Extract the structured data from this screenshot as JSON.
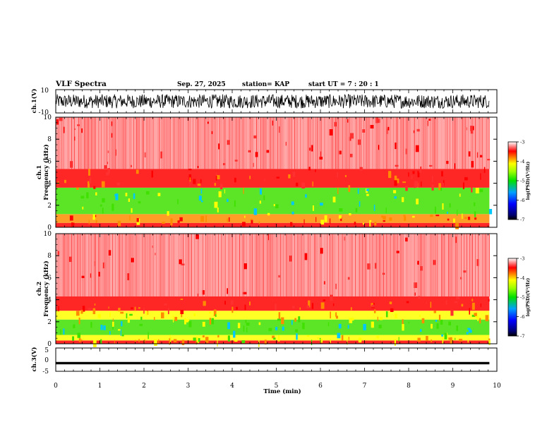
{
  "header": {
    "title": "VLF Spectra",
    "date": "Sep. 27, 2025",
    "station": "station= KAP",
    "start_ut": "start  UT =   7 : 20 : 1"
  },
  "colors": {
    "band_low": "#0000ff",
    "band_mid": "#00e000",
    "band_high": "#ffff00",
    "band_top": "#ff0000",
    "background": "#ffffff",
    "trace": "#000000"
  },
  "chart_data": [
    {
      "type": "line",
      "id": "ch1_waveform",
      "ylabel": "ch.1(V)",
      "ylim": [
        -10,
        10
      ],
      "ytick_labels": [
        "10",
        "-10"
      ],
      "xlim": [
        0,
        10
      ],
      "data_extent_min": 9.83,
      "description_values": {
        "mean": 0,
        "amplitude": 6
      }
    },
    {
      "type": "heatmap",
      "id": "ch1_spectrogram",
      "ylabel": "ch.1\nFrequency (kHz)",
      "ylim": [
        0,
        10
      ],
      "ytick_labels": [
        "10",
        "8",
        "6",
        "4",
        "2",
        "0"
      ],
      "xlim": [
        0,
        10
      ],
      "data_extent_min": 9.83,
      "colorbar": {
        "title": "log(PSD)(V²/Hz)",
        "range": [
          -7,
          -3
        ],
        "tick_labels": [
          "-3",
          "-4",
          "-5",
          "-6",
          "-7"
        ]
      },
      "bands": [
        {
          "f_low": 0.0,
          "f_high": 0.4,
          "level": -3.5
        },
        {
          "f_low": 0.4,
          "f_high": 1.2,
          "level": -3.8
        },
        {
          "f_low": 1.2,
          "f_high": 3.6,
          "level": -4.8
        },
        {
          "f_low": 3.6,
          "f_high": 5.3,
          "level": -3.6
        },
        {
          "f_low": 5.3,
          "f_high": 10.0,
          "level": -3.1
        }
      ]
    },
    {
      "type": "heatmap",
      "id": "ch2_spectrogram",
      "ylabel": "ch.2\nFrequency (kHz)",
      "ylim": [
        0,
        10
      ],
      "ytick_labels": [
        "10",
        "8",
        "6",
        "4",
        "2",
        "0"
      ],
      "xlim": [
        0,
        10
      ],
      "data_extent_min": 9.83,
      "colorbar": {
        "title": "log(PSD)(V²/Hz)",
        "range": [
          -7,
          -3
        ],
        "tick_labels": [
          "-3",
          "-4",
          "-5",
          "-6",
          "-7"
        ]
      },
      "bands": [
        {
          "f_low": 0.0,
          "f_high": 0.3,
          "level": -3.5
        },
        {
          "f_low": 0.3,
          "f_high": 0.8,
          "level": -4.3
        },
        {
          "f_low": 0.8,
          "f_high": 2.2,
          "level": -5.0
        },
        {
          "f_low": 2.2,
          "f_high": 3.0,
          "level": -4.3
        },
        {
          "f_low": 3.0,
          "f_high": 4.3,
          "level": -3.6
        },
        {
          "f_low": 4.3,
          "f_high": 10.0,
          "level": -3.1
        }
      ]
    },
    {
      "type": "line",
      "id": "ch3_waveform",
      "ylabel": "ch.3(V)",
      "ylim": [
        -5,
        5
      ],
      "ytick_labels": [
        "5",
        "0",
        "-5"
      ],
      "xlim": [
        0,
        10
      ],
      "data_extent_min": 9.83,
      "description_values": {
        "mean": -1.5,
        "amplitude": 0.3
      }
    }
  ],
  "xaxis": {
    "label": "Time (min)",
    "ticks": [
      "0",
      "1",
      "2",
      "3",
      "4",
      "5",
      "6",
      "7",
      "8",
      "9",
      "10"
    ]
  }
}
